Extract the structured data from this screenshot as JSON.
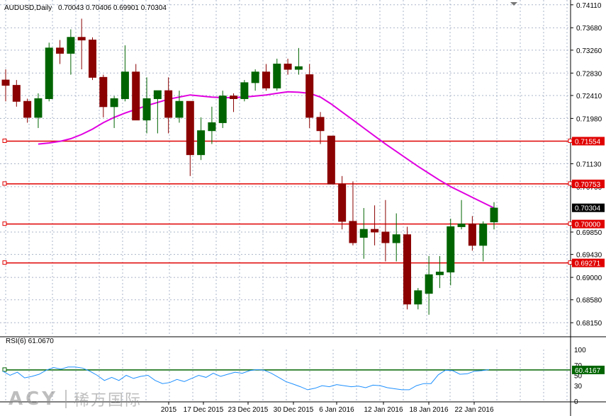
{
  "header": {
    "symbol_label": "AUDUSD,Daily",
    "ohlc_label": "0.70043 0.70406 0.69901 0.70304"
  },
  "rsi_header": {
    "label": "RSI(6) 61.0670"
  },
  "watermark": {
    "brand": "ACY",
    "brand_cn": "稀万国际"
  },
  "colors": {
    "bull": "#006400",
    "bear": "#8b0000",
    "ma": "#e000e0",
    "hline": "#e00000",
    "rsi_line": "#1e90ff",
    "rsi_level": "#006400",
    "grid": "#aab4c8"
  },
  "chart_data": [
    {
      "type": "candlestick",
      "symbol": "AUDUSD",
      "timeframe": "Daily",
      "x_tick_labels": [
        "2015",
        "17 Dec 2015",
        "23 Dec 2015",
        "30 Dec 2015",
        "6 Jan 2016",
        "12 Jan 2016",
        "18 Jan 2016",
        "22 Jan 2016"
      ],
      "y_tick_labels": [
        "0.74110",
        "0.73680",
        "0.73260",
        "0.72830",
        "0.72410",
        "0.71980",
        "0.71130",
        "0.70700",
        "0.69850",
        "0.69430",
        "0.69000",
        "0.68580",
        "0.68150"
      ],
      "ylim": [
        0.679,
        0.742
      ],
      "candles": [
        {
          "o": 0.727,
          "h": 0.729,
          "l": 0.723,
          "c": 0.726
        },
        {
          "o": 0.726,
          "h": 0.727,
          "l": 0.722,
          "c": 0.723
        },
        {
          "o": 0.723,
          "h": 0.7235,
          "l": 0.719,
          "c": 0.72
        },
        {
          "o": 0.72,
          "h": 0.7245,
          "l": 0.718,
          "c": 0.7235
        },
        {
          "o": 0.7235,
          "h": 0.734,
          "l": 0.723,
          "c": 0.733
        },
        {
          "o": 0.733,
          "h": 0.7345,
          "l": 0.73,
          "c": 0.732
        },
        {
          "o": 0.732,
          "h": 0.7365,
          "l": 0.728,
          "c": 0.735
        },
        {
          "o": 0.735,
          "h": 0.7385,
          "l": 0.729,
          "c": 0.7345
        },
        {
          "o": 0.7345,
          "h": 0.735,
          "l": 0.727,
          "c": 0.7275
        },
        {
          "o": 0.7275,
          "h": 0.728,
          "l": 0.72,
          "c": 0.722
        },
        {
          "o": 0.722,
          "h": 0.724,
          "l": 0.718,
          "c": 0.7235
        },
        {
          "o": 0.7235,
          "h": 0.7335,
          "l": 0.723,
          "c": 0.7285
        },
        {
          "o": 0.7285,
          "h": 0.73,
          "l": 0.72,
          "c": 0.7195
        },
        {
          "o": 0.7195,
          "h": 0.7275,
          "l": 0.717,
          "c": 0.7235
        },
        {
          "o": 0.7235,
          "h": 0.725,
          "l": 0.717,
          "c": 0.725
        },
        {
          "o": 0.725,
          "h": 0.7275,
          "l": 0.717,
          "c": 0.72
        },
        {
          "o": 0.72,
          "h": 0.725,
          "l": 0.719,
          "c": 0.723
        },
        {
          "o": 0.723,
          "h": 0.723,
          "l": 0.709,
          "c": 0.713
        },
        {
          "o": 0.713,
          "h": 0.72,
          "l": 0.712,
          "c": 0.7175
        },
        {
          "o": 0.7175,
          "h": 0.722,
          "l": 0.715,
          "c": 0.719
        },
        {
          "o": 0.719,
          "h": 0.725,
          "l": 0.718,
          "c": 0.724
        },
        {
          "o": 0.724,
          "h": 0.7245,
          "l": 0.721,
          "c": 0.7235
        },
        {
          "o": 0.7235,
          "h": 0.727,
          "l": 0.723,
          "c": 0.7265
        },
        {
          "o": 0.7265,
          "h": 0.729,
          "l": 0.725,
          "c": 0.7285
        },
        {
          "o": 0.7285,
          "h": 0.73,
          "l": 0.725,
          "c": 0.7255
        },
        {
          "o": 0.7255,
          "h": 0.731,
          "l": 0.725,
          "c": 0.73
        },
        {
          "o": 0.73,
          "h": 0.731,
          "l": 0.728,
          "c": 0.729
        },
        {
          "o": 0.729,
          "h": 0.733,
          "l": 0.728,
          "c": 0.7295
        },
        {
          "o": 0.728,
          "h": 0.73,
          "l": 0.718,
          "c": 0.72
        },
        {
          "o": 0.72,
          "h": 0.721,
          "l": 0.715,
          "c": 0.7175
        },
        {
          "o": 0.7165,
          "h": 0.7165,
          "l": 0.7075,
          "c": 0.7075
        },
        {
          "o": 0.7075,
          "h": 0.709,
          "l": 0.699,
          "c": 0.7005
        },
        {
          "o": 0.7005,
          "h": 0.708,
          "l": 0.696,
          "c": 0.6965
        },
        {
          "o": 0.6975,
          "h": 0.703,
          "l": 0.6935,
          "c": 0.699
        },
        {
          "o": 0.699,
          "h": 0.7035,
          "l": 0.696,
          "c": 0.6985
        },
        {
          "o": 0.6985,
          "h": 0.7045,
          "l": 0.693,
          "c": 0.6965
        },
        {
          "o": 0.6965,
          "h": 0.702,
          "l": 0.693,
          "c": 0.698
        },
        {
          "o": 0.698,
          "h": 0.6995,
          "l": 0.684,
          "c": 0.685
        },
        {
          "o": 0.685,
          "h": 0.688,
          "l": 0.684,
          "c": 0.6875
        },
        {
          "o": 0.687,
          "h": 0.694,
          "l": 0.683,
          "c": 0.6905
        },
        {
          "o": 0.6905,
          "h": 0.694,
          "l": 0.688,
          "c": 0.691
        },
        {
          "o": 0.691,
          "h": 0.701,
          "l": 0.6885,
          "c": 0.6995
        },
        {
          "o": 0.6995,
          "h": 0.7045,
          "l": 0.699,
          "c": 0.7
        },
        {
          "o": 0.7,
          "h": 0.7015,
          "l": 0.695,
          "c": 0.696
        },
        {
          "o": 0.696,
          "h": 0.7005,
          "l": 0.693,
          "c": 0.7
        },
        {
          "o": 0.7004,
          "h": 0.7041,
          "l": 0.699,
          "c": 0.703
        }
      ],
      "moving_average": [
        0.715,
        0.7152,
        0.7155,
        0.716,
        0.7168,
        0.7178,
        0.719,
        0.72,
        0.7208,
        0.7215,
        0.7222,
        0.7228,
        0.7234,
        0.7238,
        0.7242,
        0.724,
        0.7238,
        0.7237,
        0.7237,
        0.7238,
        0.724,
        0.7242,
        0.7245,
        0.7248,
        0.7247,
        0.7245,
        0.7238,
        0.7225,
        0.721,
        0.7195,
        0.718,
        0.7165,
        0.715,
        0.7136,
        0.7122,
        0.7108,
        0.7095,
        0.7082,
        0.707,
        0.706,
        0.705,
        0.704,
        0.703
      ],
      "horizontal_levels": [
        {
          "value": 0.71554,
          "label": "0.71554"
        },
        {
          "value": 0.70753,
          "label": "0.70753"
        },
        {
          "value": 0.7,
          "label": "0.70000"
        },
        {
          "value": 0.69271,
          "label": "0.69271"
        }
      ],
      "current_price": {
        "value": 0.70304,
        "label": "0.70304"
      }
    },
    {
      "type": "line",
      "indicator": "RSI(6)",
      "value": 61.067,
      "ylim": [
        0,
        100
      ],
      "y_tick_labels": [
        "100",
        "70",
        "50",
        "30",
        "0"
      ],
      "level": {
        "value": 60.4167,
        "label": "60.4167"
      },
      "values": [
        58,
        50,
        56,
        45,
        48,
        52,
        60,
        65,
        62,
        66,
        66,
        64,
        58,
        50,
        40,
        46,
        40,
        50,
        44,
        48,
        50,
        40,
        34,
        36,
        42,
        38,
        44,
        50,
        46,
        54,
        48,
        52,
        56,
        54,
        59,
        61,
        60,
        54,
        46,
        38,
        33,
        28,
        22,
        25,
        30,
        28,
        32,
        30,
        28,
        29,
        26,
        31,
        30,
        26,
        24,
        22,
        22,
        30,
        34,
        34,
        51,
        60,
        59,
        52,
        53,
        58,
        59,
        61
      ]
    }
  ]
}
